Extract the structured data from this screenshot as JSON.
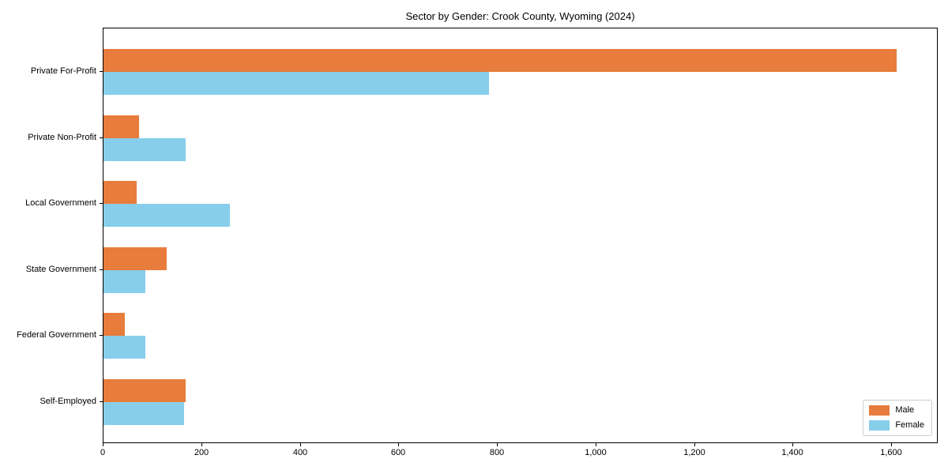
{
  "chart_data": {
    "type": "bar",
    "orientation": "horizontal",
    "title": "Sector by Gender: Crook County, Wyoming (2024)",
    "categories": [
      "Private For-Profit",
      "Private Non-Profit",
      "Local Government",
      "State Government",
      "Federal Government",
      "Self-Employed"
    ],
    "series": [
      {
        "name": "Male",
        "color": "#e87c3c",
        "values": [
          1610,
          72,
          67,
          129,
          43,
          167
        ]
      },
      {
        "name": "Female",
        "color": "#87ceeb",
        "values": [
          782,
          166,
          256,
          85,
          85,
          164
        ]
      }
    ],
    "xlabel": "",
    "ylabel": "",
    "xlim": [
      0,
      1691
    ],
    "xticks": [
      0,
      200,
      400,
      600,
      800,
      1000,
      1200,
      1400,
      1600
    ],
    "xtick_labels": [
      "0",
      "200",
      "400",
      "600",
      "800",
      "1,000",
      "1,200",
      "1,400",
      "1,600"
    ],
    "grid": false,
    "legend": {
      "position": "lower right",
      "entries": [
        "Male",
        "Female"
      ]
    }
  }
}
